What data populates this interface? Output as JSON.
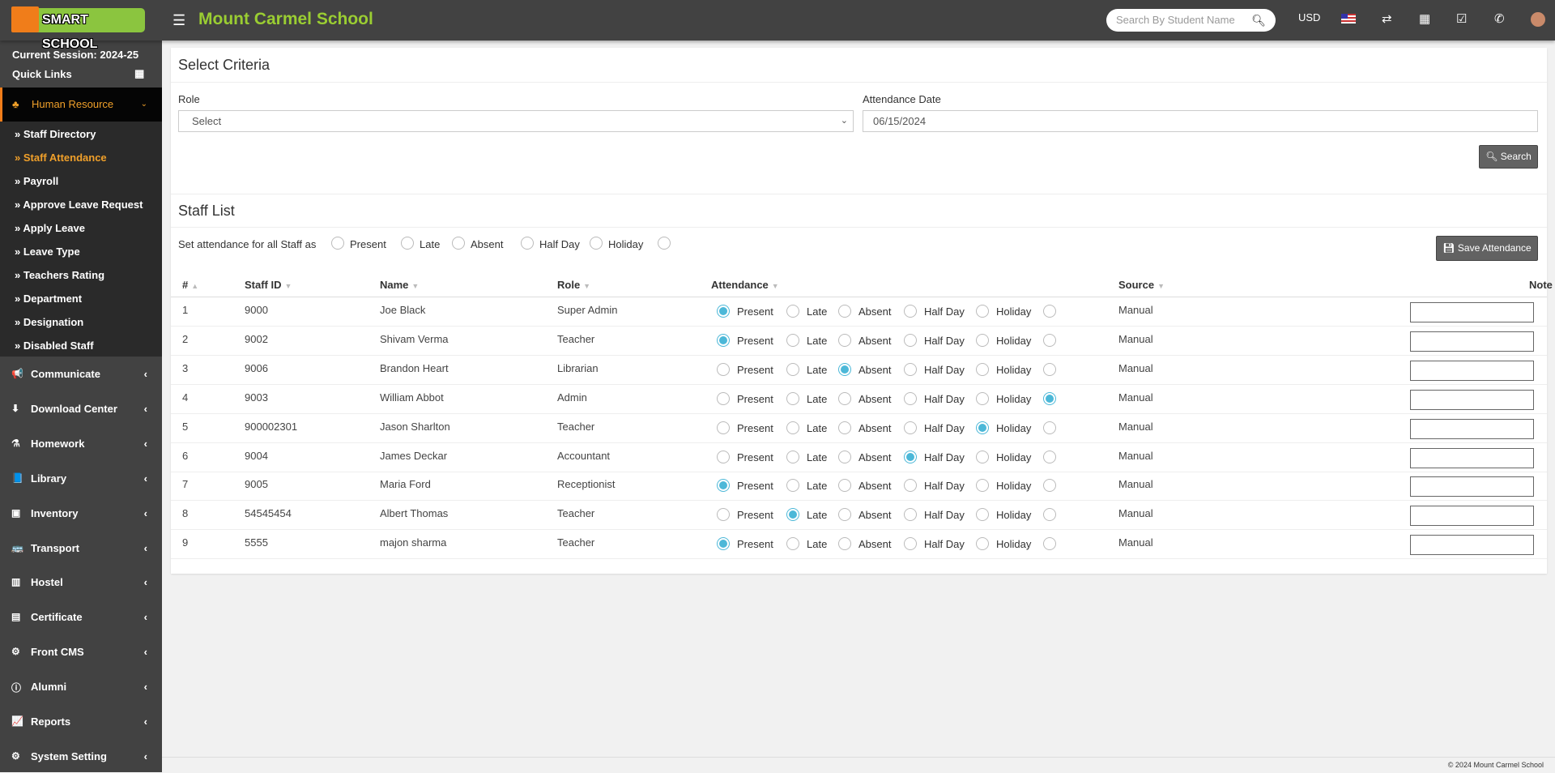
{
  "header": {
    "logo_text": "SMART SCHOOL",
    "school_name": "Mount Carmel School",
    "search_placeholder": "Search By Student Name",
    "currency": "USD"
  },
  "sidebar": {
    "session": "Current Session: 2024-25",
    "quick_links": "Quick Links",
    "active_group": "Human Resource",
    "sub_items": [
      "Staff Directory",
      "Staff Attendance",
      "Payroll",
      "Approve Leave Request",
      "Apply Leave",
      "Leave Type",
      "Teachers Rating",
      "Department",
      "Designation",
      "Disabled Staff"
    ],
    "active_sub": 1,
    "menu": [
      {
        "label": "Communicate",
        "icon": "bullhorn-icon",
        "glyph": "📢"
      },
      {
        "label": "Download Center",
        "icon": "download-icon",
        "glyph": "⬇"
      },
      {
        "label": "Homework",
        "icon": "flask-icon",
        "glyph": "⚗"
      },
      {
        "label": "Library",
        "icon": "book-icon",
        "glyph": "📘"
      },
      {
        "label": "Inventory",
        "icon": "inventory-icon",
        "glyph": "▣"
      },
      {
        "label": "Transport",
        "icon": "bus-icon",
        "glyph": "🚌"
      },
      {
        "label": "Hostel",
        "icon": "building-icon",
        "glyph": "▥"
      },
      {
        "label": "Certificate",
        "icon": "certificate-icon",
        "glyph": "▤"
      },
      {
        "label": "Front CMS",
        "icon": "cms-icon",
        "glyph": "⚙"
      },
      {
        "label": "Alumni",
        "icon": "info-icon",
        "glyph": "ⓘ"
      },
      {
        "label": "Reports",
        "icon": "chart-icon",
        "glyph": "📈"
      },
      {
        "label": "System Setting",
        "icon": "gears-icon",
        "glyph": "⚙"
      }
    ]
  },
  "criteria": {
    "title": "Select Criteria",
    "role_label": "Role",
    "role_value": "Select",
    "date_label": "Attendance Date",
    "date_value": "06/15/2024",
    "search_label": "Search"
  },
  "staff_list": {
    "title": "Staff List",
    "set_all_label": "Set attendance for all Staff as",
    "options": [
      "Present",
      "Late",
      "Absent",
      "Half Day",
      "Holiday"
    ],
    "save_label": "Save Attendance",
    "columns": [
      "#",
      "Staff ID",
      "Name",
      "Role",
      "Attendance",
      "Source",
      "Note"
    ],
    "rows": [
      {
        "n": "1",
        "id": "9000",
        "name": "Joe Black",
        "role": "Super Admin",
        "attendance": "Present",
        "source": "Manual",
        "note": ""
      },
      {
        "n": "2",
        "id": "9002",
        "name": "Shivam Verma",
        "role": "Teacher",
        "attendance": "Present",
        "source": "Manual",
        "note": ""
      },
      {
        "n": "3",
        "id": "9006",
        "name": "Brandon Heart",
        "role": "Librarian",
        "attendance": "Absent",
        "source": "Manual",
        "note": ""
      },
      {
        "n": "4",
        "id": "9003",
        "name": "William Abbot",
        "role": "Admin",
        "attendance": "(unlabeled)",
        "source": "Manual",
        "note": ""
      },
      {
        "n": "5",
        "id": "900002301",
        "name": "Jason Sharlton",
        "role": "Teacher",
        "attendance": "Holiday",
        "source": "Manual",
        "note": ""
      },
      {
        "n": "6",
        "id": "9004",
        "name": "James Deckar",
        "role": "Accountant",
        "attendance": "Half Day",
        "source": "Manual",
        "note": ""
      },
      {
        "n": "7",
        "id": "9005",
        "name": "Maria Ford",
        "role": "Receptionist",
        "attendance": "Present",
        "source": "Manual",
        "note": ""
      },
      {
        "n": "8",
        "id": "54545454",
        "name": "Albert Thomas",
        "role": "Teacher",
        "attendance": "Late",
        "source": "Manual",
        "note": ""
      },
      {
        "n": "9",
        "id": "5555",
        "name": "majon sharma",
        "role": "Teacher",
        "attendance": "Present",
        "source": "Manual",
        "note": ""
      }
    ]
  },
  "footer": {
    "copyright": "© 2024 Mount Carmel School"
  },
  "colors": {
    "header_bg": "#424242",
    "brand_green": "#9acd32",
    "active_orange": "#f0a02a",
    "radio_blue": "#4cb8d8"
  }
}
